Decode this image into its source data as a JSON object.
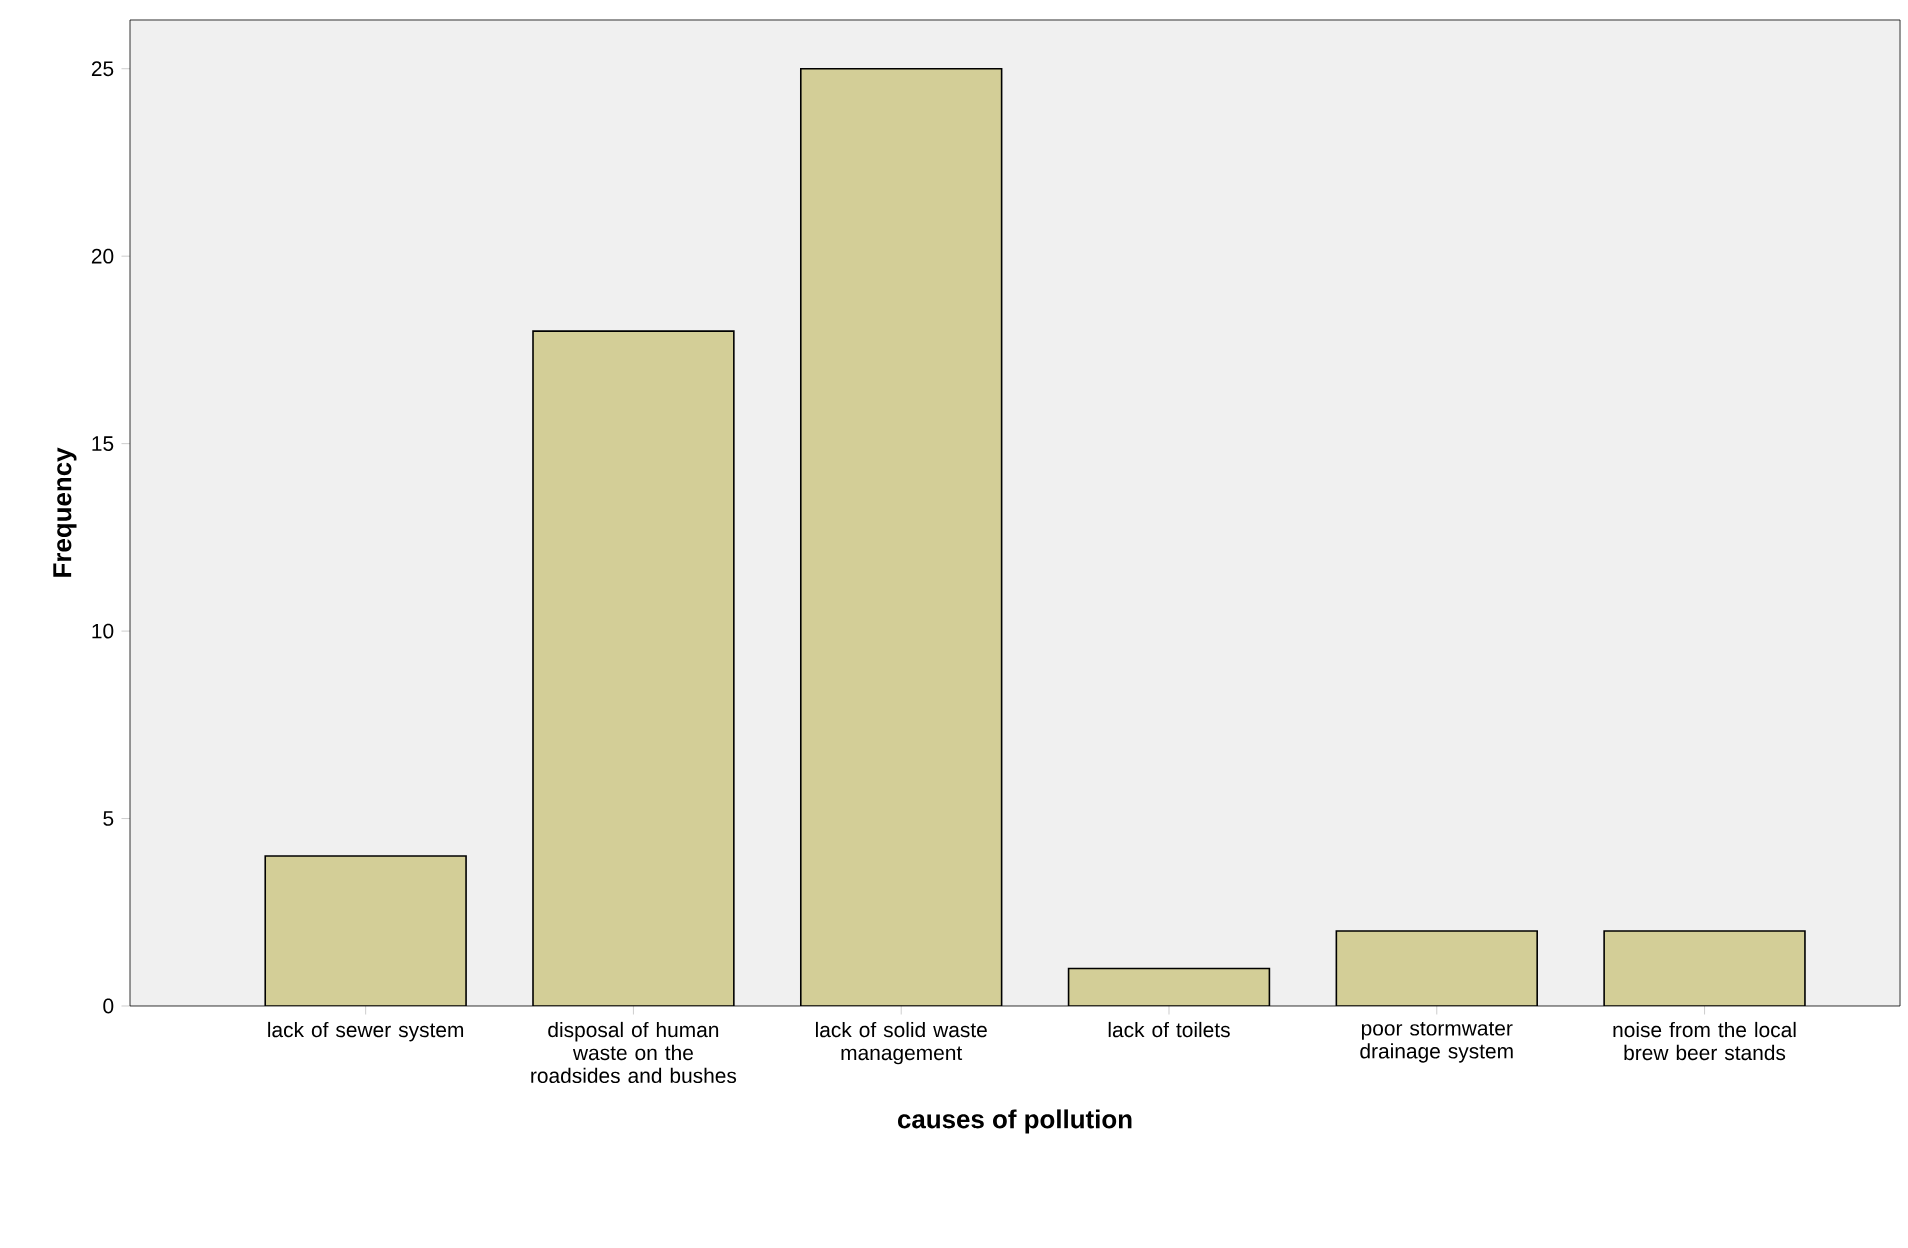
{
  "chart_data": {
    "type": "bar",
    "xlabel": "causes of pollution",
    "ylabel": "Frequency",
    "categories": [
      "lack of sewer system",
      "disposal of human waste on the roadsides and bushes",
      "lack of solid waste management",
      "lack of toilets",
      "poor stormwater drainage system",
      "noise from the local brew beer stands"
    ],
    "values": [
      4,
      18,
      25,
      1,
      2,
      2
    ],
    "color": "#d3ce97",
    "ylim": [
      0,
      26.3
    ],
    "yticks": [
      0,
      5,
      10,
      15,
      20,
      25
    ]
  }
}
